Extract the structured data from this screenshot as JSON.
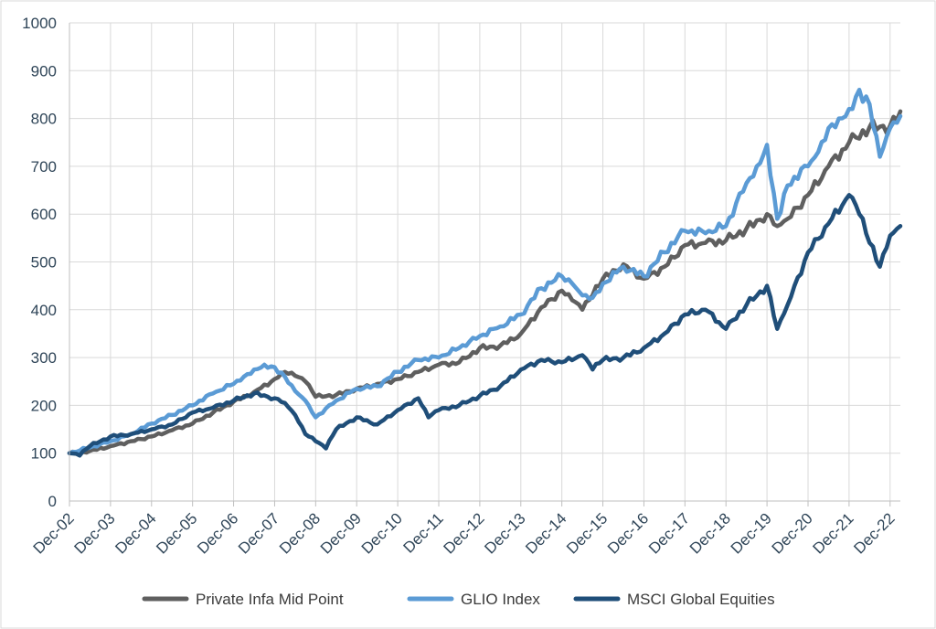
{
  "chart_data": {
    "type": "line",
    "title": "",
    "xlabel": "",
    "ylabel": "",
    "ylim": [
      0,
      1000
    ],
    "yticks": [
      "0",
      "100",
      "200",
      "300",
      "400",
      "500",
      "600",
      "700",
      "800",
      "900",
      "1000"
    ],
    "grid": true,
    "legend_position": "bottom",
    "x_start": "Dec-02",
    "x_end": "Mar-23",
    "x_tick_labels": [
      "Dec-02",
      "Dec-03",
      "Dec-04",
      "Dec-05",
      "Dec-06",
      "Dec-07",
      "Dec-08",
      "Dec-09",
      "Dec-10",
      "Dec-11",
      "Dec-12",
      "Dec-13",
      "Dec-14",
      "Dec-15",
      "Dec-16",
      "Dec-17",
      "Dec-18",
      "Dec-19",
      "Dec-20",
      "Dec-21",
      "Dec-22"
    ],
    "series": [
      {
        "name": "Private Infa Mid Point",
        "color": "#5f5f5f",
        "points": [
          [
            "Dec-02",
            100
          ],
          [
            "Jun-03",
            105
          ],
          [
            "Dec-03",
            115
          ],
          [
            "Jun-04",
            125
          ],
          [
            "Dec-04",
            135
          ],
          [
            "Jun-05",
            148
          ],
          [
            "Dec-05",
            162
          ],
          [
            "Jun-06",
            185
          ],
          [
            "Dec-06",
            208
          ],
          [
            "Jun-07",
            228
          ],
          [
            "Dec-07",
            255
          ],
          [
            "Mar-08",
            270
          ],
          [
            "Jun-08",
            262
          ],
          [
            "Sep-08",
            250
          ],
          [
            "Dec-08",
            218
          ],
          [
            "Jun-09",
            222
          ],
          [
            "Dec-09",
            235
          ],
          [
            "Jun-10",
            245
          ],
          [
            "Dec-10",
            255
          ],
          [
            "Jun-11",
            270
          ],
          [
            "Dec-11",
            285
          ],
          [
            "Jun-12",
            290
          ],
          [
            "Dec-12",
            320
          ],
          [
            "Jun-13",
            325
          ],
          [
            "Dec-13",
            350
          ],
          [
            "Jun-14",
            405
          ],
          [
            "Dec-14",
            440
          ],
          [
            "Mar-15",
            420
          ],
          [
            "Jun-15",
            400
          ],
          [
            "Sep-15",
            430
          ],
          [
            "Dec-15",
            465
          ],
          [
            "Jun-16",
            495
          ],
          [
            "Dec-16",
            465
          ],
          [
            "Jun-17",
            490
          ],
          [
            "Dec-17",
            535
          ],
          [
            "Jun-18",
            540
          ],
          [
            "Dec-18",
            545
          ],
          [
            "Jun-19",
            570
          ],
          [
            "Dec-19",
            600
          ],
          [
            "Mar-20",
            575
          ],
          [
            "Jun-20",
            590
          ],
          [
            "Dec-20",
            640
          ],
          [
            "Jun-21",
            700
          ],
          [
            "Dec-21",
            750
          ],
          [
            "Jun-22",
            782
          ],
          [
            "Dec-22",
            785
          ],
          [
            "Mar-23",
            815
          ]
        ]
      },
      {
        "name": "GLIO Index",
        "color": "#5b9bd5",
        "points": [
          [
            "Dec-02",
            100
          ],
          [
            "Jun-03",
            112
          ],
          [
            "Dec-03",
            125
          ],
          [
            "Jun-04",
            140
          ],
          [
            "Dec-04",
            162
          ],
          [
            "Jun-05",
            180
          ],
          [
            "Dec-05",
            200
          ],
          [
            "Jun-06",
            225
          ],
          [
            "Dec-06",
            245
          ],
          [
            "Mar-07",
            260
          ],
          [
            "Jun-07",
            275
          ],
          [
            "Sep-07",
            285
          ],
          [
            "Dec-07",
            280
          ],
          [
            "Mar-08",
            260
          ],
          [
            "Jun-08",
            230
          ],
          [
            "Sep-08",
            210
          ],
          [
            "Dec-08",
            175
          ],
          [
            "Jun-09",
            210
          ],
          [
            "Dec-09",
            235
          ],
          [
            "Jun-10",
            240
          ],
          [
            "Dec-10",
            270
          ],
          [
            "Jun-11",
            295
          ],
          [
            "Dec-11",
            300
          ],
          [
            "Jun-12",
            320
          ],
          [
            "Dec-12",
            345
          ],
          [
            "Jun-13",
            365
          ],
          [
            "Dec-13",
            390
          ],
          [
            "Jun-14",
            445
          ],
          [
            "Dec-14",
            470
          ],
          [
            "Mar-15",
            455
          ],
          [
            "Jun-15",
            430
          ],
          [
            "Sep-15",
            425
          ],
          [
            "Dec-15",
            455
          ],
          [
            "Jun-16",
            490
          ],
          [
            "Dec-16",
            470
          ],
          [
            "Jun-17",
            520
          ],
          [
            "Dec-17",
            565
          ],
          [
            "Jun-18",
            560
          ],
          [
            "Dec-18",
            575
          ],
          [
            "Jun-19",
            665
          ],
          [
            "Sep-19",
            700
          ],
          [
            "Dec-19",
            745
          ],
          [
            "Mar-20",
            590
          ],
          [
            "Jun-20",
            660
          ],
          [
            "Dec-20",
            700
          ],
          [
            "Mar-21",
            730
          ],
          [
            "Jun-21",
            780
          ],
          [
            "Sep-21",
            800
          ],
          [
            "Dec-21",
            820
          ],
          [
            "Mar-22",
            860
          ],
          [
            "Jun-22",
            830
          ],
          [
            "Sep-22",
            720
          ],
          [
            "Dec-22",
            780
          ],
          [
            "Mar-23",
            805
          ]
        ]
      },
      {
        "name": "MSCI Global Equities",
        "color": "#1f4e79",
        "points": [
          [
            "Dec-02",
            100
          ],
          [
            "Mar-03",
            95
          ],
          [
            "Jun-03",
            115
          ],
          [
            "Dec-03",
            135
          ],
          [
            "Jun-04",
            140
          ],
          [
            "Dec-04",
            150
          ],
          [
            "Jun-05",
            160
          ],
          [
            "Dec-05",
            185
          ],
          [
            "Jun-06",
            195
          ],
          [
            "Dec-06",
            210
          ],
          [
            "Jun-07",
            225
          ],
          [
            "Dec-07",
            215
          ],
          [
            "Mar-08",
            205
          ],
          [
            "Jun-08",
            180
          ],
          [
            "Sep-08",
            140
          ],
          [
            "Dec-08",
            125
          ],
          [
            "Mar-09",
            110
          ],
          [
            "Jun-09",
            150
          ],
          [
            "Dec-09",
            175
          ],
          [
            "Jun-10",
            160
          ],
          [
            "Dec-10",
            190
          ],
          [
            "Jun-11",
            215
          ],
          [
            "Sep-11",
            175
          ],
          [
            "Dec-11",
            190
          ],
          [
            "Jun-12",
            200
          ],
          [
            "Dec-12",
            220
          ],
          [
            "Jun-13",
            240
          ],
          [
            "Dec-13",
            275
          ],
          [
            "Jun-14",
            295
          ],
          [
            "Dec-14",
            290
          ],
          [
            "Jun-15",
            305
          ],
          [
            "Sep-15",
            275
          ],
          [
            "Dec-15",
            295
          ],
          [
            "Jun-16",
            300
          ],
          [
            "Dec-16",
            320
          ],
          [
            "Jun-17",
            350
          ],
          [
            "Dec-17",
            390
          ],
          [
            "Jun-18",
            400
          ],
          [
            "Dec-18",
            360
          ],
          [
            "Jun-19",
            410
          ],
          [
            "Dec-19",
            450
          ],
          [
            "Mar-20",
            360
          ],
          [
            "Jun-20",
            410
          ],
          [
            "Dec-20",
            520
          ],
          [
            "Jun-21",
            580
          ],
          [
            "Dec-21",
            640
          ],
          [
            "Mar-22",
            600
          ],
          [
            "Jun-22",
            540
          ],
          [
            "Sep-22",
            490
          ],
          [
            "Dec-22",
            555
          ],
          [
            "Mar-23",
            575
          ]
        ]
      }
    ]
  }
}
